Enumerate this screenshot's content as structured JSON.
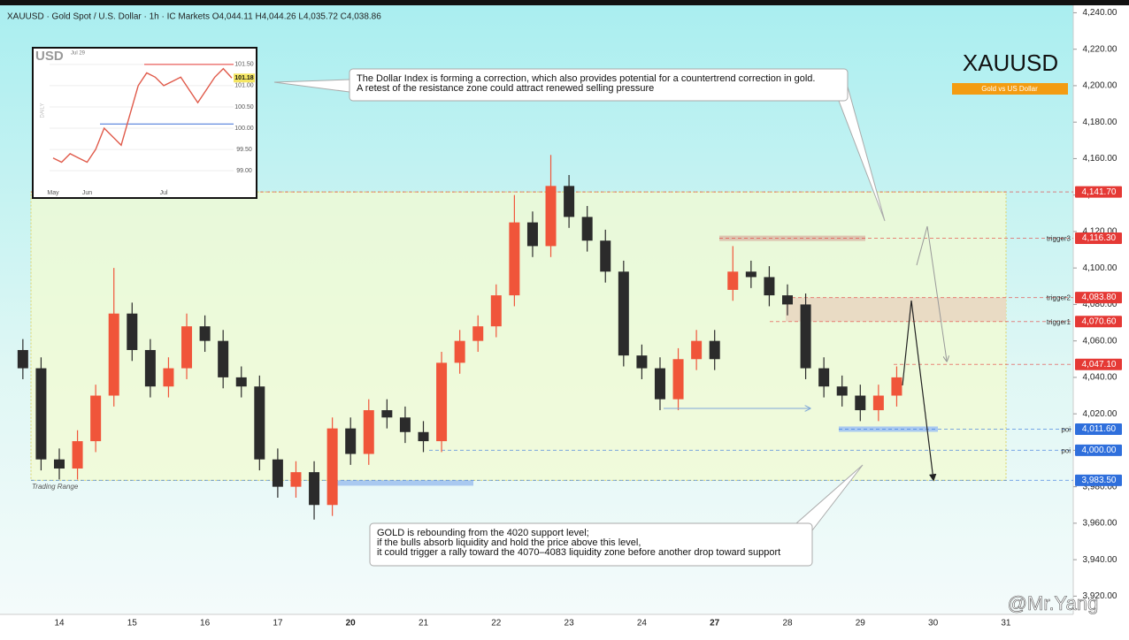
{
  "chart_data": {
    "type": "candlestick",
    "header": "XAUUSD · Gold Spot / U.S. Dollar · 1h · IC Markets  O4,044.11  H4,044.26  L4,035.72  C4,038.86",
    "title": "XAUUSD",
    "subtitle": "Gold vs US Dollar",
    "categories": [
      "14",
      "15",
      "16",
      "17",
      "20",
      "21",
      "22",
      "23",
      "24",
      "27",
      "28",
      "29",
      "30",
      "31"
    ],
    "x": [
      -0.5,
      -0.25,
      0,
      0.25,
      0.5,
      0.75,
      1,
      1.25,
      1.5,
      1.75,
      2,
      2.25,
      2.5,
      2.75,
      3,
      3.25,
      3.5,
      3.75,
      4,
      4.25,
      4.5,
      4.75,
      5,
      5.25,
      5.5,
      5.75,
      6,
      6.25,
      6.5,
      6.75,
      7,
      7.25,
      7.5,
      7.75,
      8,
      8.25,
      8.5,
      8.75,
      9,
      9.25,
      9.5,
      9.75,
      10,
      10.25,
      10.5,
      10.75,
      11,
      11.25,
      11.5
    ],
    "open": [
      4055,
      4045,
      3995,
      3990,
      4005,
      4030,
      4075,
      4055,
      4035,
      4045,
      4068,
      4060,
      4040,
      4035,
      3995,
      3980,
      3988,
      3970,
      4012,
      3998,
      4022,
      4018,
      4010,
      4005,
      4048,
      4060,
      4068,
      4085,
      4125,
      4112,
      4145,
      4128,
      4115,
      4098,
      4052,
      4045,
      4028,
      4050,
      4060,
      4088,
      4098,
      4095,
      4085,
      4080,
      4045,
      4035,
      4030,
      4022,
      4030
    ],
    "high": [
      4061,
      4051,
      4001,
      4011,
      4036,
      4100,
      4081,
      4061,
      4051,
      4075,
      4074,
      4066,
      4046,
      4041,
      4001,
      3994,
      3994,
      4018,
      4018,
      4028,
      4028,
      4024,
      4016,
      4054,
      4066,
      4074,
      4091,
      4140,
      4131,
      4162,
      4151,
      4134,
      4121,
      4104,
      4058,
      4051,
      4056,
      4066,
      4066,
      4112,
      4104,
      4101,
      4091,
      4086,
      4051,
      4041,
      4036,
      4036,
      4046
    ],
    "low": [
      4039,
      3989,
      3984,
      3984,
      3999,
      4024,
      4049,
      4029,
      4029,
      4039,
      4054,
      4034,
      4029,
      3989,
      3974,
      3974,
      3962,
      3964,
      3992,
      3992,
      4012,
      4004,
      3999,
      3999,
      4042,
      4054,
      4062,
      4079,
      4106,
      4106,
      4122,
      4109,
      4092,
      4046,
      4039,
      4022,
      4022,
      4044,
      4044,
      4082,
      4089,
      4079,
      4074,
      4039,
      4029,
      4024,
      4016,
      4016,
      4024
    ],
    "close": [
      4045,
      3995,
      3990,
      4005,
      4030,
      4075,
      4055,
      4035,
      4045,
      4068,
      4060,
      4040,
      4035,
      3995,
      3980,
      3988,
      3970,
      4012,
      3998,
      4022,
      4018,
      4010,
      4005,
      4048,
      4060,
      4068,
      4085,
      4125,
      4112,
      4145,
      4128,
      4115,
      4098,
      4052,
      4045,
      4028,
      4050,
      4060,
      4050,
      4098,
      4095,
      4085,
      4080,
      4045,
      4035,
      4030,
      4022,
      4030,
      4040
    ],
    "up_color": "#f0553a",
    "down_color": "#2b2b2b",
    "ylim": [
      3910,
      4247
    ],
    "yticks": [
      {
        "value": 4240,
        "label": "4,240.00"
      },
      {
        "value": 4220,
        "label": "4,220.00"
      },
      {
        "value": 4200,
        "label": "4,200.00"
      },
      {
        "value": 4180,
        "label": "4,180.00"
      },
      {
        "value": 4160,
        "label": "4,160.00"
      },
      {
        "value": 4140,
        "label": "4,140.00"
      },
      {
        "value": 4120,
        "label": "4,120.00"
      },
      {
        "value": 4100,
        "label": "4,100.00"
      },
      {
        "value": 4080,
        "label": "4,080.00"
      },
      {
        "value": 4060,
        "label": "4,060.00"
      },
      {
        "value": 4040,
        "label": "4,040.00"
      },
      {
        "value": 4020,
        "label": "4,020.00"
      },
      {
        "value": 4000,
        "label": "4,000.00"
      },
      {
        "value": 3980,
        "label": "3,980.00"
      },
      {
        "value": 3960,
        "label": "3,960.00"
      },
      {
        "value": 3940,
        "label": "3,940.00"
      },
      {
        "value": 3920,
        "label": "3,920.00"
      }
    ],
    "levels": [
      {
        "value": 4141.7,
        "label": "4,141.70",
        "color": "#e53935"
      },
      {
        "value": 4116.3,
        "label": "4,116.30",
        "color": "#e53935",
        "name": "trigger3"
      },
      {
        "value": 4083.8,
        "label": "4,083.80",
        "color": "#e53935",
        "name": "trigger2"
      },
      {
        "value": 4070.6,
        "label": "4,070.60",
        "color": "#e53935",
        "name": "trigger1"
      },
      {
        "value": 4047.1,
        "label": "4,047.10",
        "color": "#e53935"
      },
      {
        "value": 4011.6,
        "label": "4,011.60",
        "color": "#2f6fdc",
        "name": "poi"
      },
      {
        "value": 4000,
        "label": "4,000.00",
        "color": "#2f6fdc",
        "name": "poi"
      },
      {
        "value": 3983.5,
        "label": "3,983.50",
        "color": "#2f6fdc"
      }
    ],
    "range_label": "Trading Range",
    "annotations": [
      [
        "The Dollar Index is forming a correction, which also provides potential for a countertrend correction in gold.",
        "A retest of the resistance zone could attract renewed selling pressure"
      ],
      [
        "GOLD is rebounding from the 4020 support level;",
        "if the bulls absorb liquidity and hold the price above this level,",
        "it could trigger a rally toward the 4070–4083 liquidity zone before another drop toward support"
      ]
    ],
    "inset": {
      "label": "USD",
      "timeframe": "DAILY",
      "date": "Jul 29",
      "categories": [
        "May",
        null,
        null,
        null,
        "Jun",
        null,
        null,
        null,
        null,
        null,
        null,
        null,
        null,
        "Jul",
        null,
        null,
        null,
        null,
        null,
        null,
        null,
        null
      ],
      "values": [
        99.3,
        99.2,
        99.4,
        99.3,
        99.2,
        99.5,
        100.0,
        99.8,
        99.6,
        100.3,
        101.0,
        101.3,
        101.2,
        101.0,
        101.1,
        101.2,
        100.9,
        100.6,
        100.9,
        101.2,
        101.4,
        101.18
      ],
      "ylim": [
        98.4,
        101.85
      ],
      "yticks": [
        {
          "value": 101.5,
          "label": "101.50"
        },
        {
          "value": 101,
          "label": "101.00"
        },
        {
          "value": 100.5,
          "label": "100.50"
        },
        {
          "value": 100,
          "label": "100.00"
        },
        {
          "value": 99.5,
          "label": "99.50"
        },
        {
          "value": 99,
          "label": "99.00"
        }
      ],
      "last": 101.18,
      "levels": [
        {
          "value": 101.5,
          "color": "#e53935"
        },
        {
          "value": 100.1,
          "color": "#3b6fd6"
        }
      ]
    },
    "watermark": "@Mr.Yang"
  }
}
